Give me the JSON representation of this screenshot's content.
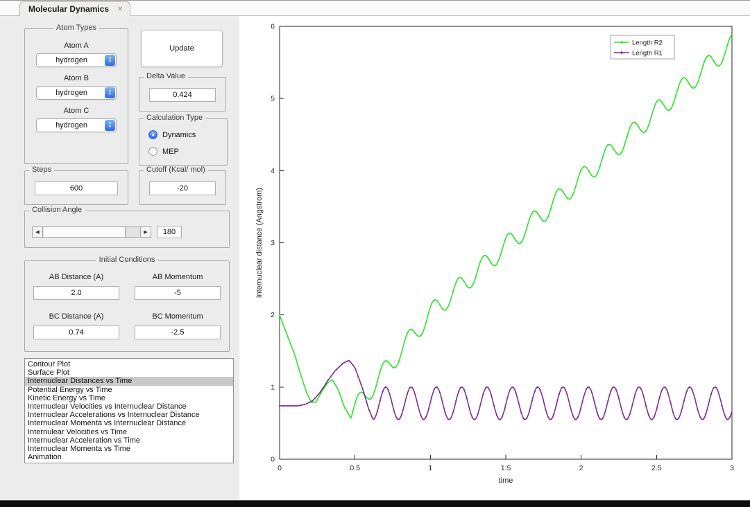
{
  "window": {
    "tab_title": "Molecular Dynamics"
  },
  "icons": {
    "close": "✕",
    "spinner_up": "▲",
    "spinner_down": "▼",
    "slider_left": "◀",
    "slider_right": "▶"
  },
  "panels": {
    "atom_types": {
      "title": "Atom Types",
      "atoms": [
        {
          "label": "Atom A",
          "value": "hydrogen"
        },
        {
          "label": "Atom B",
          "value": "hydrogen"
        },
        {
          "label": "Atom C",
          "value": "hydrogen"
        }
      ]
    },
    "update_button": "Update",
    "delta": {
      "title": "Delta Value",
      "value": "0.424"
    },
    "calculation": {
      "title": "Calculation Type",
      "options": [
        {
          "label": "Dynamics",
          "selected": true
        },
        {
          "label": "MEP",
          "selected": false
        }
      ]
    },
    "steps": {
      "title": "Steps",
      "value": "600"
    },
    "cutoff": {
      "title": "Cutoff (Kcal/ mol)",
      "value": "-20"
    },
    "collision": {
      "title": "Collision Angle",
      "value": "180"
    },
    "initial": {
      "title": "Initial Conditions",
      "fields": [
        {
          "label": "AB Distance (A)",
          "value": "2.0"
        },
        {
          "label": "AB Momentum",
          "value": "-5"
        },
        {
          "label": "BC Distance (A)",
          "value": "0.74"
        },
        {
          "label": "BC Momentum",
          "value": "-2.5"
        }
      ]
    },
    "listbox": {
      "selected_index": 2,
      "items": [
        "Contour Plot",
        "Surface Plot",
        "Internuclear Distances vs Time",
        "Potential Energy vs Time",
        "Kinetic Energy vs Time",
        "Internuclear Velocities vs Internuclear Distance",
        "Internuclear Accelerations vs Internuclear Distance",
        "Internuclear Momenta vs Internuclear Distance",
        "Internulear Velocities vs Time",
        "Internuclear Acceleration vs Time",
        "Internuclear Momenta vs Time",
        "Animation"
      ]
    }
  },
  "chart_data": {
    "type": "line",
    "title": "",
    "xlabel": "time",
    "ylabel": "internuclear distance (Angstrom)",
    "xlim": [
      0,
      3
    ],
    "ylim": [
      0,
      6
    ],
    "xticks": [
      0,
      0.5,
      1,
      1.5,
      2,
      2.5,
      3
    ],
    "yticks": [
      0,
      1,
      2,
      3,
      4,
      5,
      6
    ],
    "grid": false,
    "legend_position": "top-right",
    "series": [
      {
        "name": "Length R2",
        "color": "#2fe42f",
        "head": [
          [
            0,
            2.0
          ],
          [
            0.05,
            1.72
          ],
          [
            0.1,
            1.45
          ],
          [
            0.14,
            1.17
          ],
          [
            0.18,
            0.92
          ],
          [
            0.21,
            0.79
          ],
          [
            0.24,
            0.79
          ],
          [
            0.28,
            0.94
          ],
          [
            0.32,
            1.06
          ],
          [
            0.35,
            1.1
          ],
          [
            0.39,
            0.96
          ],
          [
            0.43,
            0.72
          ],
          [
            0.47,
            0.58
          ]
        ],
        "tail": {
          "t0": 0.47,
          "t1": 3.0,
          "base_pts": [
            [
              0.47,
              0.62
            ],
            [
              1.0,
              2.02
            ],
            [
              3.0,
              5.75
            ]
          ],
          "amp": 0.14,
          "period": 0.165,
          "phase": -0.6
        }
      },
      {
        "name": "Length R1",
        "color": "#7e2f8e",
        "head": [
          [
            0,
            0.74
          ],
          [
            0.12,
            0.74
          ],
          [
            0.17,
            0.76
          ],
          [
            0.22,
            0.81
          ],
          [
            0.27,
            0.93
          ],
          [
            0.32,
            1.09
          ],
          [
            0.37,
            1.23
          ],
          [
            0.42,
            1.33
          ],
          [
            0.46,
            1.37
          ],
          [
            0.5,
            1.27
          ],
          [
            0.55,
            0.98
          ],
          [
            0.59,
            0.7
          ],
          [
            0.62,
            0.55
          ]
        ],
        "tail": {
          "t0": 0.62,
          "t1": 3.0,
          "base_pts": [
            [
              0.62,
              0.775
            ],
            [
              3.0,
              0.775
            ]
          ],
          "amp": 0.225,
          "period": 0.168,
          "phase": -1.5708
        }
      }
    ]
  }
}
